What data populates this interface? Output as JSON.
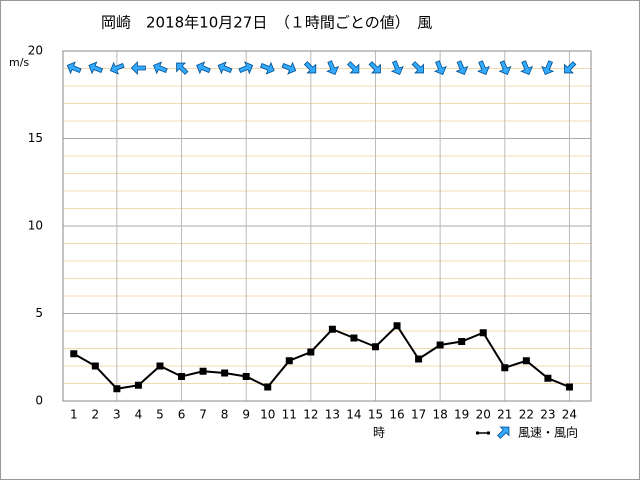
{
  "chart_data": {
    "type": "line",
    "title": "岡崎　2018年10月27日　（１時間ごとの値）　風",
    "y_unit": "m/s",
    "x_label": "時",
    "legend_label": "風速・風向",
    "x": [
      1,
      2,
      3,
      4,
      5,
      6,
      7,
      8,
      9,
      10,
      11,
      12,
      13,
      14,
      15,
      16,
      17,
      18,
      19,
      20,
      21,
      22,
      23,
      24
    ],
    "xlim": [
      0.5,
      25
    ],
    "xticks": [
      1,
      2,
      3,
      4,
      5,
      6,
      7,
      8,
      9,
      10,
      11,
      12,
      13,
      14,
      15,
      16,
      17,
      18,
      19,
      20,
      21,
      22,
      23,
      24
    ],
    "series": [
      {
        "name": "風速",
        "color": "#000000",
        "values": [
          2.7,
          2.0,
          0.7,
          0.9,
          2.0,
          1.4,
          1.7,
          1.6,
          1.4,
          0.8,
          2.3,
          2.8,
          4.1,
          3.6,
          3.1,
          4.3,
          2.4,
          3.2,
          3.4,
          3.9,
          1.9,
          2.3,
          1.3,
          0.8
        ]
      }
    ],
    "directions": [
      292.5,
      292.5,
      247.5,
      270,
      292.5,
      315,
      292.5,
      292.5,
      67.5,
      112.5,
      112.5,
      135,
      157.5,
      135,
      135,
      157.5,
      135,
      157.5,
      157.5,
      157.5,
      157.5,
      157.5,
      202.5,
      225
    ],
    "arrow_color": "#33aaff",
    "ylim": [
      0,
      20
    ],
    "yticks": [
      0,
      5,
      10,
      15,
      20
    ],
    "minor_yticks": [
      1,
      2,
      3,
      4,
      6,
      7,
      8,
      9,
      11,
      12,
      13,
      14,
      16,
      17,
      18,
      19
    ],
    "grid": true
  }
}
